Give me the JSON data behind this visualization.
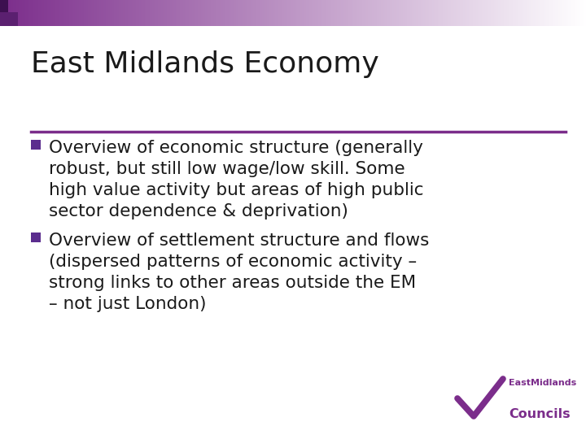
{
  "title": "East Midlands Economy",
  "bullet1": "Overview of economic structure (generally robust, but still low wage/low skill. Some high value activity but areas of high public sector dependence & deprivation)",
  "bullet2": "Overview of settlement structure and flows (dispersed patterns of economic activity – strong links to other areas outside the EM – not just London)",
  "title_fontsize": 26,
  "body_fontsize": 15.5,
  "title_color": "#1a1a1a",
  "body_color": "#1a1a1a",
  "bullet_color": "#5b2d8e",
  "divider_color": "#7b2d8b",
  "bg_color": "#ffffff",
  "logo_color": "#7b2d8b",
  "logo_text1": "EastMidlands",
  "logo_text2": "Councils",
  "header_purple": "#7b2d8b"
}
